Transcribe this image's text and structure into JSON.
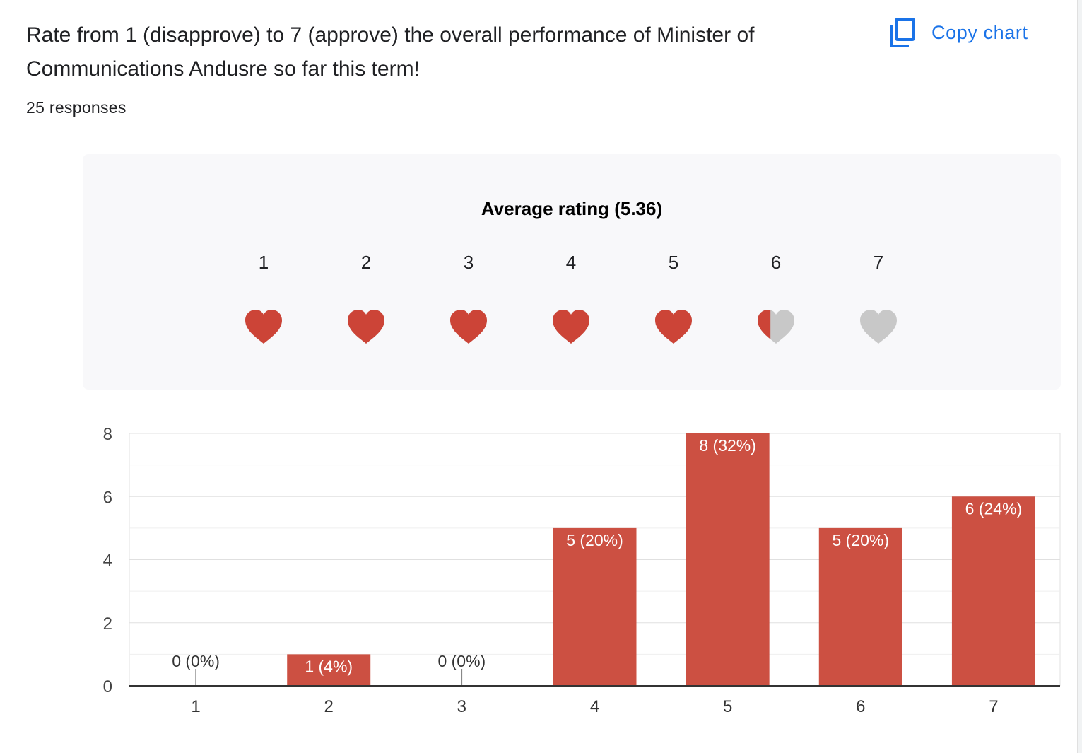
{
  "question": {
    "title": "Rate from 1 (disapprove) to 7 (approve) the overall performance of Minister of Communications Andusre so far this term!",
    "responses": "25 responses",
    "copy_label": "Copy chart",
    "copy_icon": "copy-icon"
  },
  "rating": {
    "average_label": "Average rating (5.36)",
    "average_value": 5.36,
    "scale": [
      "1",
      "2",
      "3",
      "4",
      "5",
      "6",
      "7"
    ],
    "filled_color": "#cc4437",
    "empty_color": "#c8c8c8",
    "icon": "heart-icon"
  },
  "colors": {
    "accent": "#1a73e8",
    "bar": "#cc5042"
  },
  "chart_data": {
    "type": "bar",
    "categories": [
      "1",
      "2",
      "3",
      "4",
      "5",
      "6",
      "7"
    ],
    "values": [
      0,
      1,
      0,
      5,
      8,
      5,
      6
    ],
    "data_labels": [
      "0 (0%)",
      "1 (4%)",
      "0 (0%)",
      "5 (20%)",
      "8 (32%)",
      "5 (20%)",
      "6 (24%)"
    ],
    "yticks": [
      "0",
      "2",
      "4",
      "6",
      "8"
    ],
    "ylim": [
      0,
      8
    ],
    "grid": true,
    "xlabel": "",
    "ylabel": ""
  }
}
